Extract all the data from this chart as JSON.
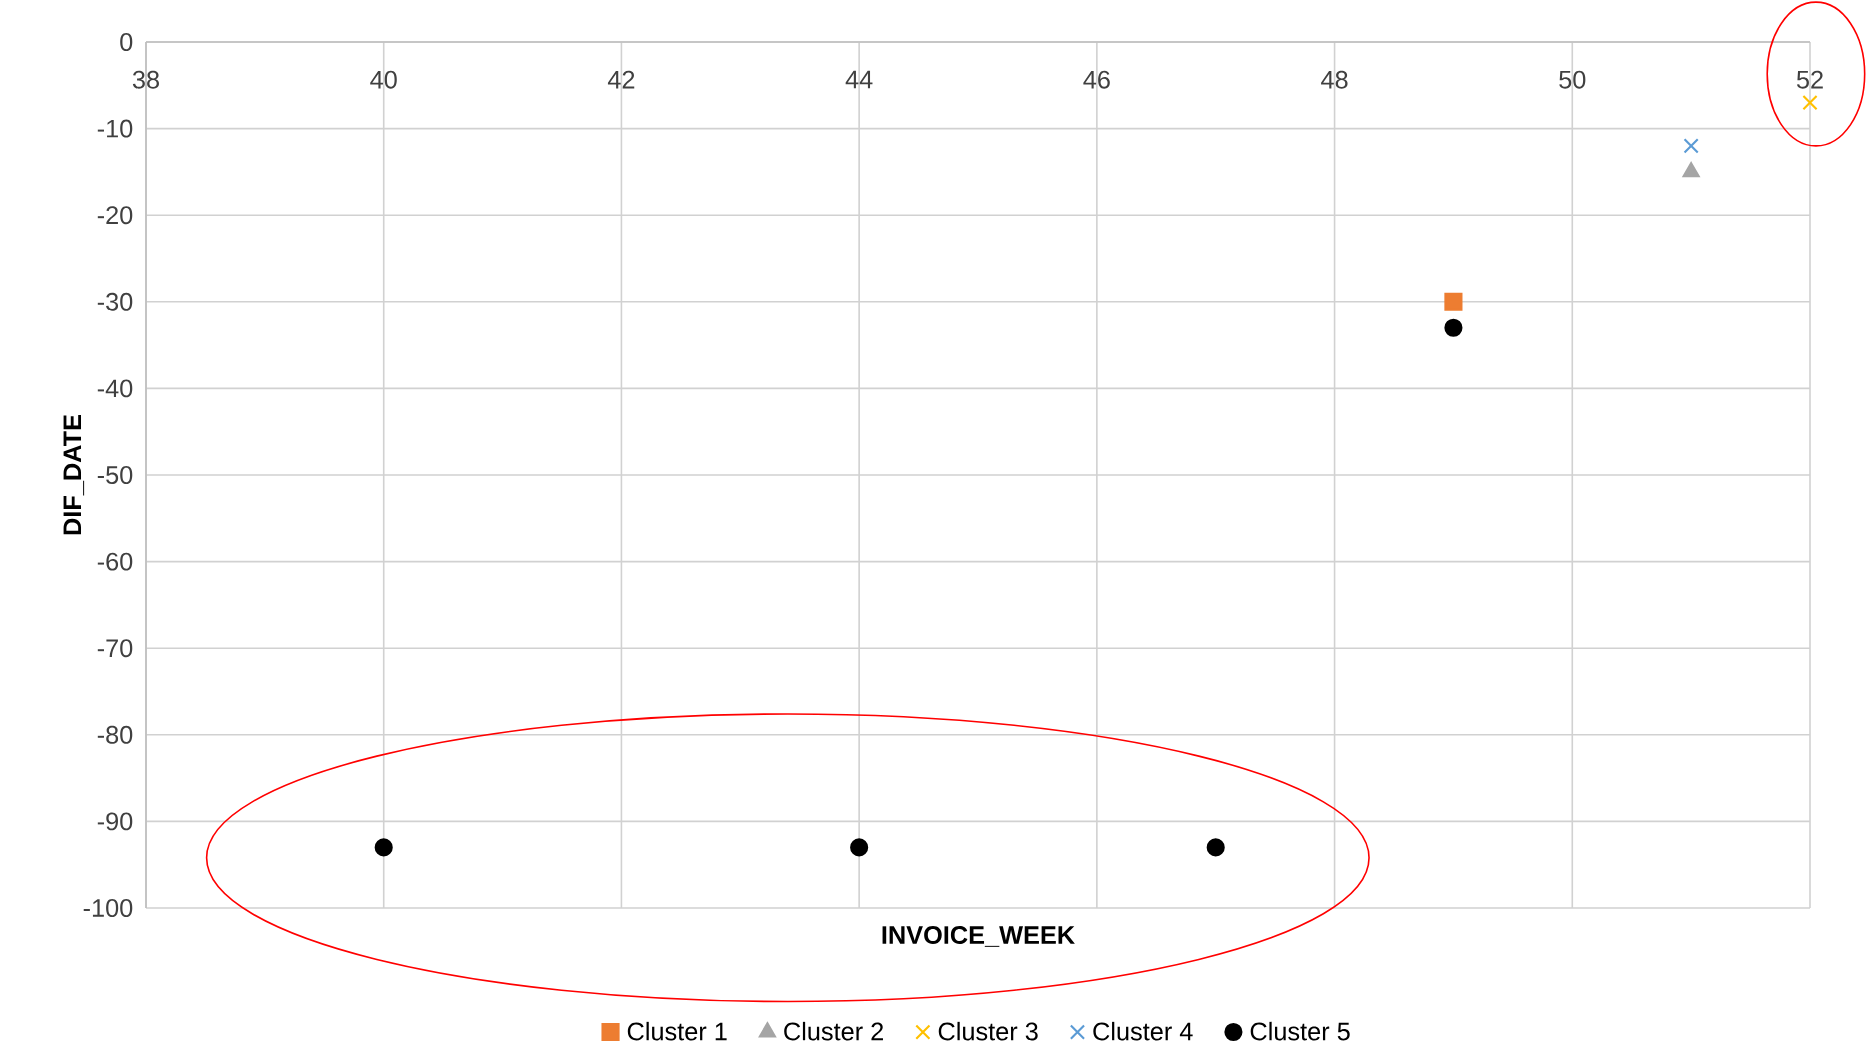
{
  "chart_data": {
    "type": "scatter",
    "xlabel": "INVOICE_WEEK",
    "ylabel": "DIF_DATE",
    "xlim": [
      38,
      52
    ],
    "xticks": [
      38,
      40,
      42,
      44,
      46,
      48,
      50,
      52
    ],
    "ylim": [
      -100,
      0
    ],
    "yticks": [
      -100,
      -90,
      -80,
      -70,
      -60,
      -50,
      -40,
      -30,
      -20,
      -10,
      0
    ],
    "grid": true,
    "legend": "bottom",
    "series": [
      {
        "name": "Cluster 1",
        "color": "#ed7d31",
        "marker": "square",
        "x": [
          49
        ],
        "values": [
          -30
        ]
      },
      {
        "name": "Cluster 2",
        "color": "#a5a5a5",
        "marker": "triangle",
        "x": [
          51
        ],
        "values": [
          -15
        ]
      },
      {
        "name": "Cluster 3",
        "color": "#ffc000",
        "marker": "cross",
        "x": [
          52
        ],
        "values": [
          -7
        ]
      },
      {
        "name": "Cluster 4",
        "color": "#5b9bd5",
        "marker": "cross",
        "x": [
          51
        ],
        "values": [
          -12
        ]
      },
      {
        "name": "Cluster 5",
        "color": "#000000",
        "marker": "circle",
        "x": [
          49,
          40,
          44,
          47
        ],
        "values": [
          -33,
          -93,
          -93,
          -93
        ]
      }
    ]
  }
}
